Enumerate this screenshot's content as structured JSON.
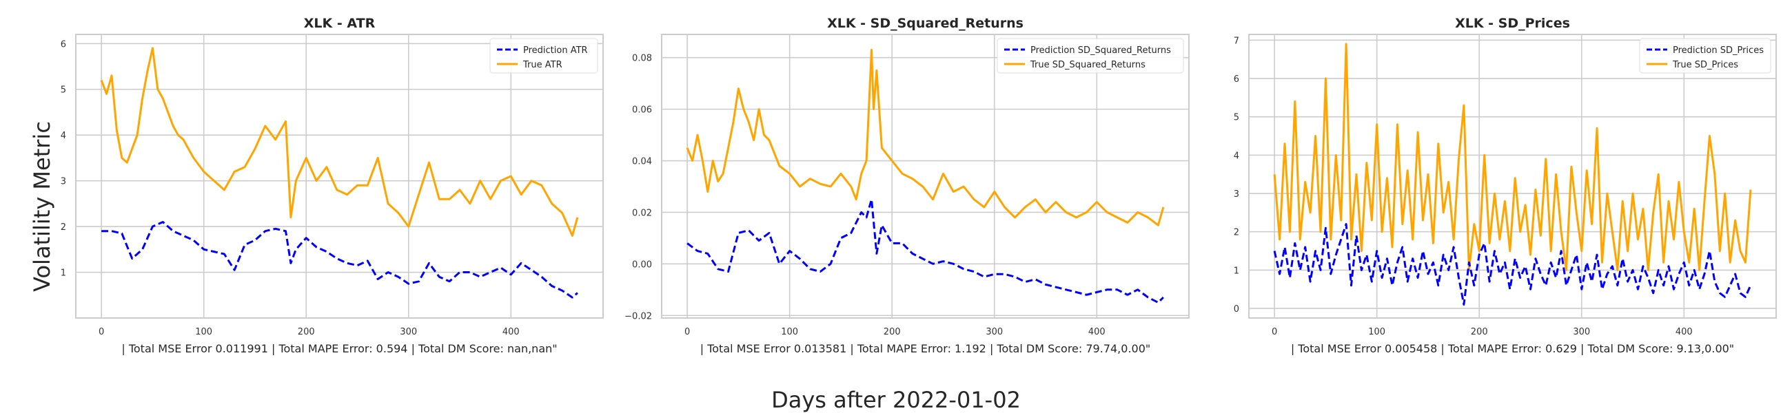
{
  "figure": {
    "ylabel": "Volatility Metric",
    "xlabel": "Days after 2022-01-02"
  },
  "colors": {
    "prediction": "#0000ff",
    "true": "#ffa500",
    "grid": "#cccccc",
    "frame": "#cccccc"
  },
  "chart_data": [
    {
      "type": "line",
      "title": "XLK - ATR",
      "footer": "| Total MSE Error 0.011991 | Total MAPE Error: 0.594 | Total DM Score: nan,nan\"",
      "xlim": [
        -25,
        490
      ],
      "ylim": [
        0.0,
        6.2
      ],
      "xticks": [
        0,
        100,
        200,
        300,
        400
      ],
      "yticks": [
        1,
        2,
        3,
        4,
        5,
        6
      ],
      "legend": "top-right",
      "series": [
        {
          "name": "Prediction ATR",
          "style": "dashed",
          "color": "#0000ff",
          "x": [
            0,
            10,
            20,
            30,
            40,
            50,
            60,
            70,
            80,
            90,
            100,
            110,
            120,
            130,
            140,
            150,
            160,
            170,
            180,
            185,
            190,
            200,
            210,
            220,
            230,
            240,
            250,
            260,
            270,
            280,
            290,
            300,
            310,
            320,
            330,
            340,
            350,
            360,
            370,
            380,
            390,
            400,
            410,
            420,
            430,
            440,
            450,
            460,
            465
          ],
          "y": [
            1.9,
            1.9,
            1.85,
            1.3,
            1.5,
            2.0,
            2.1,
            1.9,
            1.8,
            1.7,
            1.5,
            1.45,
            1.4,
            1.05,
            1.6,
            1.7,
            1.9,
            1.95,
            1.9,
            1.2,
            1.5,
            1.75,
            1.55,
            1.45,
            1.3,
            1.2,
            1.15,
            1.25,
            0.85,
            1.0,
            0.9,
            0.75,
            0.8,
            1.2,
            0.9,
            0.8,
            1.0,
            1.0,
            0.9,
            1.0,
            1.1,
            0.95,
            1.2,
            1.05,
            0.9,
            0.7,
            0.6,
            0.45,
            0.55
          ]
        },
        {
          "name": "True ATR",
          "style": "solid",
          "color": "#ffa500",
          "x": [
            0,
            5,
            10,
            15,
            20,
            25,
            30,
            35,
            40,
            45,
            50,
            55,
            60,
            65,
            70,
            75,
            80,
            90,
            100,
            110,
            120,
            130,
            140,
            150,
            160,
            170,
            180,
            185,
            190,
            200,
            210,
            220,
            230,
            240,
            250,
            260,
            270,
            280,
            290,
            300,
            310,
            320,
            330,
            340,
            350,
            360,
            370,
            380,
            390,
            400,
            410,
            420,
            430,
            440,
            450,
            460,
            465
          ],
          "y": [
            5.2,
            4.9,
            5.3,
            4.1,
            3.5,
            3.4,
            3.7,
            4.0,
            4.8,
            5.4,
            5.9,
            5.0,
            4.8,
            4.5,
            4.2,
            4.0,
            3.9,
            3.5,
            3.2,
            3.0,
            2.8,
            3.2,
            3.3,
            3.7,
            4.2,
            3.9,
            4.3,
            2.2,
            3.0,
            3.5,
            3.0,
            3.3,
            2.8,
            2.7,
            2.9,
            2.9,
            3.5,
            2.5,
            2.3,
            2.0,
            2.7,
            3.4,
            2.6,
            2.6,
            2.8,
            2.5,
            3.0,
            2.6,
            3.0,
            3.1,
            2.7,
            3.0,
            2.9,
            2.5,
            2.3,
            1.8,
            2.2
          ]
        }
      ]
    },
    {
      "type": "line",
      "title": "XLK - SD_Squared_Returns",
      "footer": "| Total MSE Error 0.013581 | Total MAPE Error: 1.192 | Total DM Score: 79.74,0.00\"",
      "xlim": [
        -25,
        490
      ],
      "ylim": [
        -0.021,
        0.089
      ],
      "xticks": [
        0,
        100,
        200,
        300,
        400
      ],
      "yticks": [
        -0.02,
        0.0,
        0.02,
        0.04,
        0.06,
        0.08
      ],
      "ytick_labels": [
        "−0.02",
        "0.00",
        "0.02",
        "0.04",
        "0.06",
        "0.08"
      ],
      "legend": "top-right",
      "series": [
        {
          "name": "Prediction SD_Squared_Returns",
          "style": "dashed",
          "color": "#0000ff",
          "x": [
            0,
            10,
            20,
            30,
            40,
            50,
            60,
            70,
            80,
            90,
            100,
            110,
            120,
            130,
            140,
            150,
            160,
            170,
            175,
            180,
            185,
            190,
            200,
            210,
            220,
            230,
            240,
            250,
            260,
            270,
            280,
            290,
            300,
            310,
            320,
            330,
            340,
            350,
            360,
            370,
            380,
            390,
            400,
            410,
            420,
            430,
            440,
            450,
            460,
            465
          ],
          "y": [
            0.008,
            0.005,
            0.004,
            -0.002,
            -0.003,
            0.012,
            0.013,
            0.009,
            0.012,
            0.0,
            0.005,
            0.002,
            -0.002,
            -0.003,
            0.0,
            0.01,
            0.012,
            0.02,
            0.018,
            0.025,
            0.004,
            0.015,
            0.008,
            0.008,
            0.004,
            0.002,
            0.0,
            0.001,
            0.0,
            -0.002,
            -0.003,
            -0.005,
            -0.004,
            -0.004,
            -0.005,
            -0.007,
            -0.006,
            -0.008,
            -0.009,
            -0.01,
            -0.011,
            -0.012,
            -0.011,
            -0.01,
            -0.01,
            -0.012,
            -0.01,
            -0.013,
            -0.015,
            -0.013
          ]
        },
        {
          "name": "True SD_Squared_Returns",
          "style": "solid",
          "color": "#ffa500",
          "x": [
            0,
            5,
            10,
            15,
            20,
            25,
            30,
            35,
            40,
            45,
            50,
            55,
            60,
            65,
            70,
            75,
            80,
            90,
            100,
            110,
            120,
            130,
            140,
            150,
            160,
            165,
            170,
            175,
            180,
            182,
            185,
            190,
            200,
            210,
            220,
            230,
            240,
            250,
            260,
            270,
            280,
            290,
            300,
            310,
            320,
            330,
            340,
            350,
            360,
            370,
            380,
            390,
            400,
            410,
            420,
            430,
            440,
            450,
            460,
            465
          ],
          "y": [
            0.045,
            0.04,
            0.05,
            0.04,
            0.028,
            0.04,
            0.032,
            0.035,
            0.045,
            0.055,
            0.068,
            0.06,
            0.055,
            0.048,
            0.06,
            0.05,
            0.048,
            0.038,
            0.035,
            0.03,
            0.033,
            0.031,
            0.03,
            0.035,
            0.03,
            0.025,
            0.035,
            0.04,
            0.083,
            0.06,
            0.075,
            0.045,
            0.04,
            0.035,
            0.033,
            0.03,
            0.025,
            0.035,
            0.028,
            0.03,
            0.025,
            0.022,
            0.028,
            0.022,
            0.018,
            0.022,
            0.025,
            0.02,
            0.024,
            0.02,
            0.018,
            0.02,
            0.024,
            0.02,
            0.018,
            0.016,
            0.02,
            0.018,
            0.015,
            0.022
          ]
        }
      ]
    },
    {
      "type": "line",
      "title": "XLK - SD_Prices",
      "footer": "| Total MSE Error 0.005458 | Total MAPE Error: 0.629 | Total DM Score: 9.13,0.00\"",
      "xlim": [
        -25,
        490
      ],
      "ylim": [
        -0.25,
        7.15
      ],
      "xticks": [
        0,
        100,
        200,
        300,
        400
      ],
      "yticks": [
        0,
        1,
        2,
        3,
        4,
        5,
        6,
        7
      ],
      "legend": "top-right",
      "series": [
        {
          "name": "Prediction SD_Prices",
          "style": "dashed",
          "color": "#0000ff",
          "x": [
            0,
            5,
            10,
            15,
            20,
            25,
            30,
            35,
            40,
            45,
            50,
            55,
            60,
            65,
            70,
            75,
            80,
            85,
            90,
            95,
            100,
            105,
            110,
            115,
            120,
            125,
            130,
            135,
            140,
            145,
            150,
            155,
            160,
            165,
            170,
            175,
            180,
            185,
            190,
            195,
            200,
            205,
            210,
            215,
            220,
            225,
            230,
            235,
            240,
            245,
            250,
            255,
            260,
            265,
            270,
            275,
            280,
            285,
            290,
            295,
            300,
            305,
            310,
            315,
            320,
            325,
            330,
            335,
            340,
            345,
            350,
            355,
            360,
            365,
            370,
            375,
            380,
            385,
            390,
            395,
            400,
            405,
            410,
            415,
            420,
            425,
            430,
            435,
            440,
            445,
            450,
            455,
            460,
            465
          ],
          "y": [
            1.5,
            0.9,
            1.6,
            0.8,
            1.7,
            1.0,
            1.6,
            0.7,
            1.5,
            1.0,
            2.1,
            0.9,
            1.4,
            1.8,
            2.2,
            0.6,
            1.9,
            1.0,
            1.4,
            0.7,
            1.5,
            0.8,
            1.3,
            0.6,
            1.2,
            1.6,
            0.7,
            1.3,
            0.8,
            1.5,
            0.9,
            1.2,
            0.6,
            1.4,
            1.0,
            1.6,
            0.8,
            0.1,
            1.2,
            0.6,
            1.4,
            1.7,
            0.7,
            1.5,
            0.9,
            1.2,
            0.5,
            1.3,
            0.8,
            1.1,
            0.5,
            1.3,
            0.9,
            0.6,
            1.2,
            0.8,
            1.5,
            0.6,
            1.0,
            1.4,
            0.5,
            1.2,
            0.7,
            1.4,
            0.5,
            0.9,
            1.1,
            0.6,
            1.3,
            0.7,
            1.0,
            0.5,
            1.1,
            0.8,
            0.4,
            1.0,
            0.6,
            1.1,
            0.5,
            0.9,
            1.2,
            0.6,
            1.0,
            0.5,
            0.9,
            1.5,
            0.7,
            0.4,
            0.3,
            0.6,
            0.9,
            0.4,
            0.3,
            0.6
          ]
        },
        {
          "name": "True SD_Prices",
          "style": "solid",
          "color": "#ffa500",
          "x": [
            0,
            5,
            10,
            15,
            20,
            25,
            30,
            35,
            40,
            45,
            50,
            55,
            60,
            65,
            70,
            75,
            80,
            85,
            90,
            95,
            100,
            105,
            110,
            115,
            120,
            125,
            130,
            135,
            140,
            145,
            150,
            155,
            160,
            165,
            170,
            175,
            180,
            185,
            190,
            195,
            200,
            205,
            210,
            215,
            220,
            225,
            230,
            235,
            240,
            245,
            250,
            255,
            260,
            265,
            270,
            275,
            280,
            285,
            290,
            295,
            300,
            305,
            310,
            315,
            320,
            325,
            330,
            335,
            340,
            345,
            350,
            355,
            360,
            365,
            370,
            375,
            380,
            385,
            390,
            395,
            400,
            405,
            410,
            415,
            420,
            425,
            430,
            435,
            440,
            445,
            450,
            455,
            460,
            465
          ],
          "y": [
            3.5,
            1.8,
            4.3,
            2.0,
            5.4,
            1.8,
            3.3,
            2.5,
            4.5,
            2.0,
            6.0,
            1.8,
            4.0,
            2.3,
            6.9,
            1.8,
            3.5,
            1.5,
            3.8,
            2.3,
            4.8,
            2.0,
            3.4,
            1.6,
            4.8,
            2.2,
            3.6,
            1.8,
            4.6,
            2.3,
            3.5,
            1.7,
            4.3,
            2.5,
            3.3,
            1.8,
            3.9,
            5.3,
            1.0,
            2.2,
            1.5,
            4.0,
            1.7,
            3.0,
            1.8,
            2.8,
            1.5,
            3.4,
            2.0,
            2.7,
            1.4,
            3.1,
            1.9,
            3.9,
            1.5,
            3.5,
            2.0,
            1.0,
            3.7,
            2.5,
            1.5,
            3.6,
            2.2,
            4.7,
            1.2,
            3.0,
            2.0,
            1.0,
            2.8,
            1.5,
            3.0,
            1.8,
            2.6,
            1.0,
            2.5,
            3.5,
            1.2,
            2.8,
            1.8,
            3.3,
            2.0,
            1.2,
            2.6,
            1.0,
            2.8,
            4.5,
            3.5,
            1.5,
            3.0,
            1.2,
            2.3,
            1.5,
            1.2,
            3.1
          ]
        }
      ]
    }
  ]
}
